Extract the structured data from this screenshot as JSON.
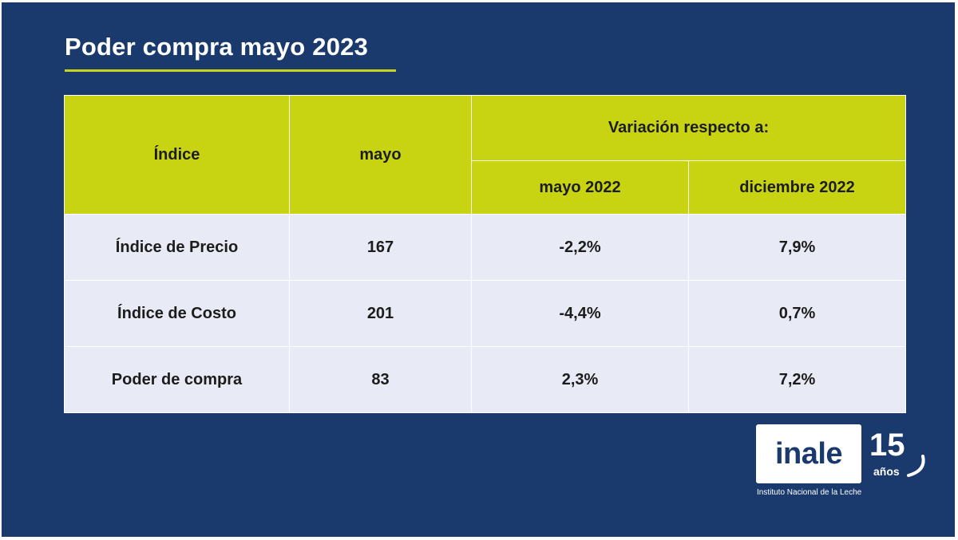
{
  "title": "Poder compra mayo 2023",
  "colors": {
    "background": "#1a3a6e",
    "accent": "#c8d411",
    "row_background": "#e8ebf5"
  },
  "table": {
    "headers": {
      "indice": "Índice",
      "mayo": "mayo",
      "variacion": "Variación respecto a:",
      "mayo_2022": "mayo 2022",
      "diciembre_2022": "diciembre 2022"
    },
    "rows": [
      {
        "indice": "Índice de Precio",
        "mayo": "167",
        "mayo_2022": "-2,2%",
        "diciembre_2022": "7,9%"
      },
      {
        "indice": "Índice de Costo",
        "mayo": "201",
        "mayo_2022": "-4,4%",
        "diciembre_2022": "0,7%"
      },
      {
        "indice": "Poder de compra",
        "mayo": "83",
        "mayo_2022": "2,3%",
        "diciembre_2022": "7,2%"
      }
    ]
  },
  "logo": {
    "name": "inale",
    "anniversary_number": "15",
    "anniversary_word": "años",
    "subtitle": "Instituto Nacional de la Leche"
  }
}
